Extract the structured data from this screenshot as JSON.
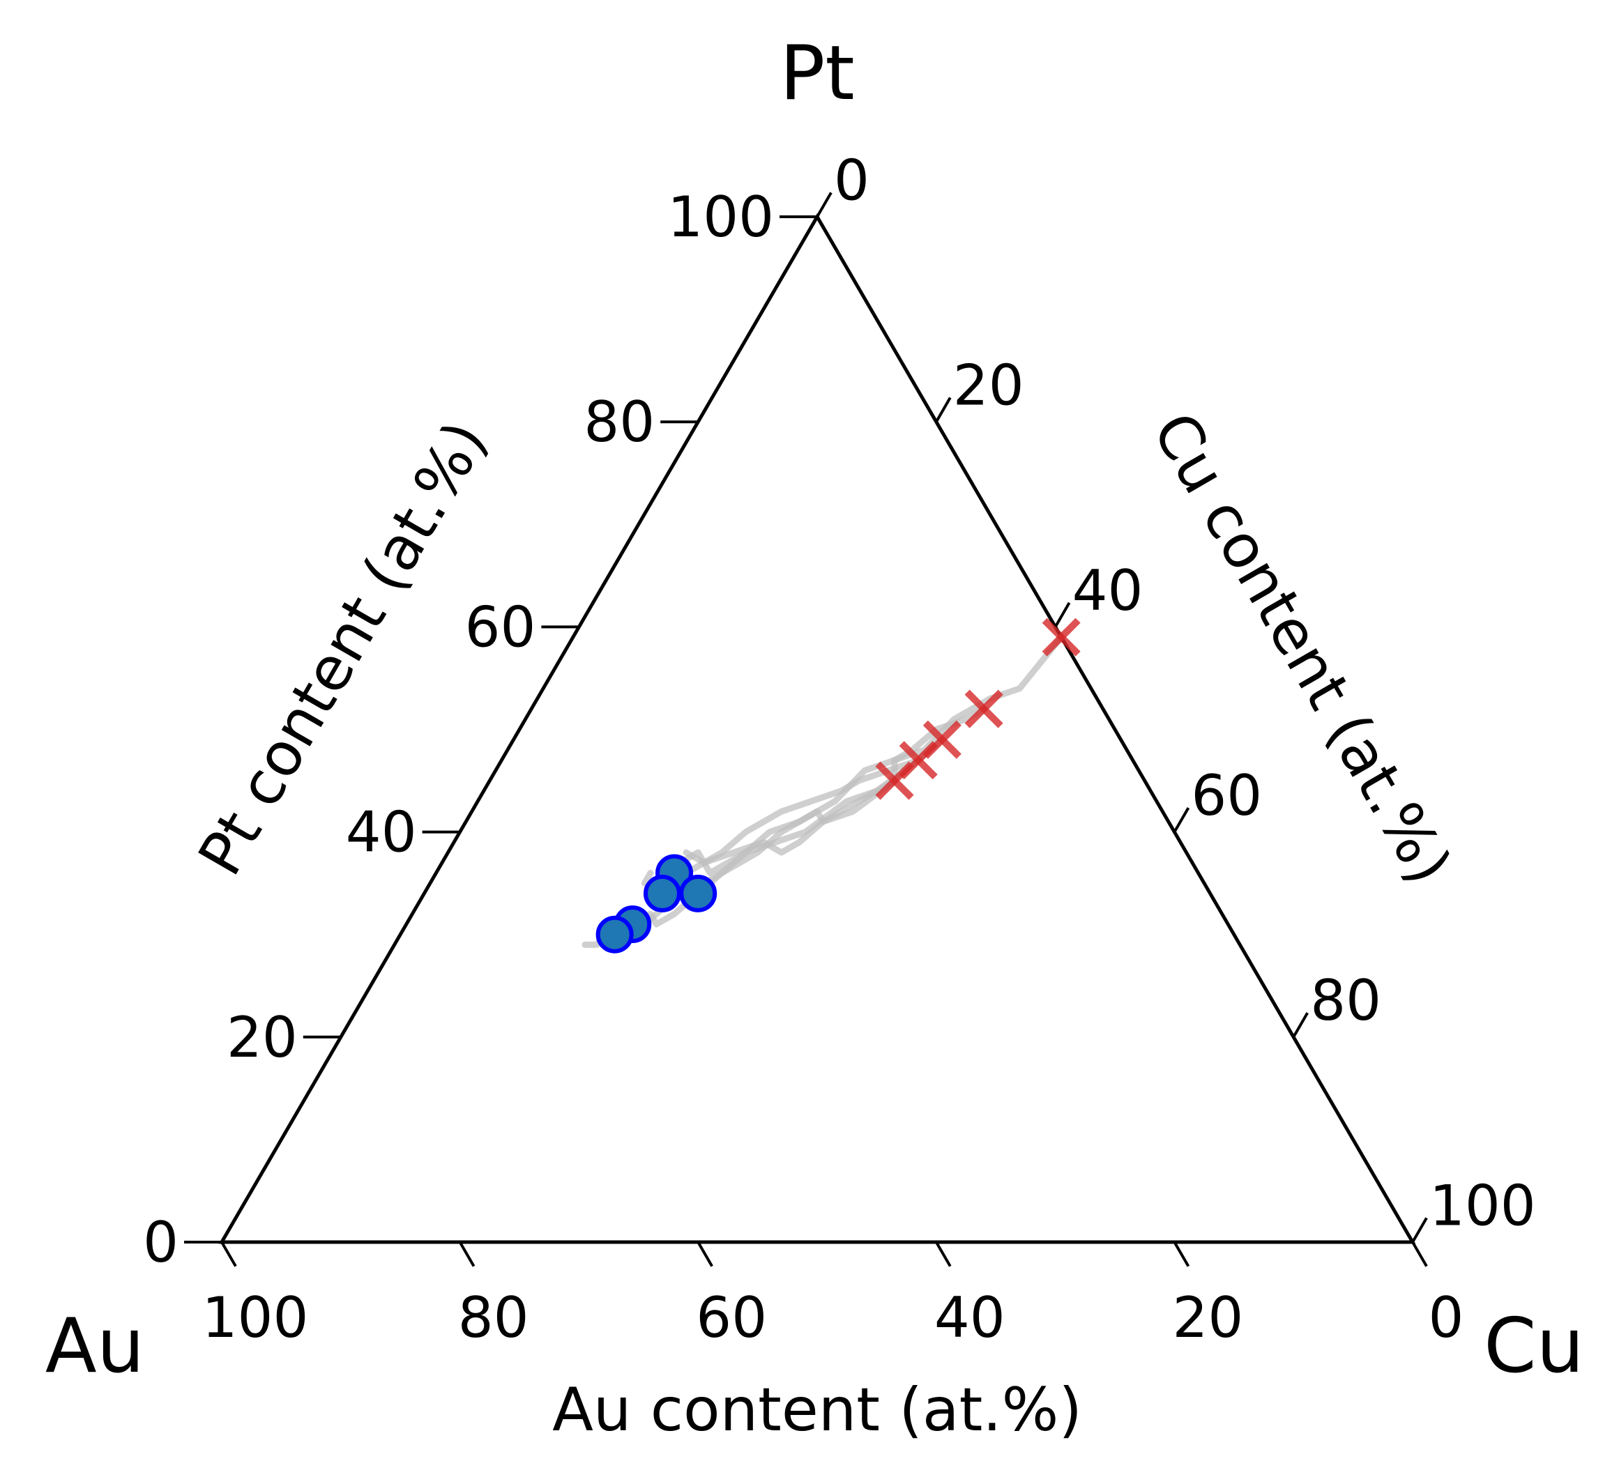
{
  "chart_data": {
    "type": "ternary",
    "corner_labels": {
      "top": "Pt",
      "left": "Au",
      "right": "Cu"
    },
    "axis_labels": {
      "left": "Pt content (at.%)",
      "right": "Cu content (at.%)",
      "bottom": "Au content (at.%)"
    },
    "ticks": {
      "pt": [
        "0",
        "20",
        "40",
        "60",
        "80",
        "100"
      ],
      "cu": [
        "0",
        "20",
        "40",
        "60",
        "80",
        "100"
      ],
      "au": [
        "100",
        "80",
        "60",
        "40",
        "20",
        "0"
      ]
    },
    "tick_values": [
      0,
      20,
      40,
      60,
      80,
      100
    ],
    "colors": {
      "axes": "#000000",
      "paths": "#bfbfbf",
      "start_marker": "#d62728",
      "end_marker_fill": "#1f77b4",
      "end_marker_edge": "#0000ff"
    },
    "series": [
      {
        "kind": "paths",
        "points": [
          [
            [
              41,
              59
            ],
            [
              40,
              54
            ],
            [
              38,
              53
            ],
            [
              36,
              51
            ],
            [
              35,
              48
            ],
            [
              33,
              47
            ],
            [
              34,
              45
            ],
            [
              32,
              42
            ],
            [
              30,
              41
            ],
            [
              29,
              39
            ],
            [
              28,
              38
            ],
            [
              26,
              39
            ],
            [
              24,
              38
            ],
            [
              22,
              37
            ],
            [
              20,
              38
            ]
          ],
          [
            [
              38,
              52
            ],
            [
              37,
              51
            ],
            [
              35,
              50
            ],
            [
              34,
              48
            ],
            [
              33,
              47
            ],
            [
              31,
              46
            ],
            [
              30,
              43
            ],
            [
              28,
              41
            ],
            [
              26,
              40
            ],
            [
              25,
              38
            ],
            [
              23,
              36
            ],
            [
              22,
              37
            ],
            [
              21,
              38
            ],
            [
              20,
              37
            ],
            [
              19,
              36
            ]
          ],
          [
            [
              36,
              49
            ],
            [
              35,
              47
            ],
            [
              33,
              46
            ],
            [
              31,
              45
            ],
            [
              30,
              44
            ],
            [
              28,
              43
            ],
            [
              26,
              42
            ],
            [
              24,
              40
            ],
            [
              23,
              38
            ],
            [
              22,
              37
            ],
            [
              20,
              35
            ],
            [
              19,
              34
            ],
            [
              20,
              36
            ],
            [
              18,
              35
            ],
            [
              18,
              36
            ]
          ],
          [
            [
              35,
              47
            ],
            [
              33,
              44
            ],
            [
              32,
              43
            ],
            [
              30,
              41
            ],
            [
              29,
              42
            ],
            [
              27,
              40
            ],
            [
              26,
              38
            ],
            [
              25,
              37
            ],
            [
              24,
              36
            ],
            [
              23,
              34
            ],
            [
              22,
              32
            ],
            [
              21,
              31
            ],
            [
              20,
              32
            ],
            [
              19,
              31
            ],
            [
              19,
              30
            ]
          ],
          [
            [
              34,
              45
            ],
            [
              33,
              44
            ],
            [
              31,
              43
            ],
            [
              29,
              40
            ],
            [
              27,
              39
            ],
            [
              25,
              38
            ],
            [
              24,
              36
            ],
            [
              23,
              35
            ],
            [
              21,
              33
            ],
            [
              20,
              31
            ],
            [
              19,
              30
            ],
            [
              18,
              31
            ],
            [
              17,
              30
            ],
            [
              17,
              29
            ],
            [
              16,
              29
            ]
          ]
        ]
      },
      {
        "kind": "start",
        "marker": "x",
        "points": [
          [
            41,
            59
          ],
          [
            38,
            52
          ],
          [
            36,
            49
          ],
          [
            35,
            47
          ],
          [
            34,
            45
          ]
        ]
      },
      {
        "kind": "end",
        "marker": "circle",
        "points": [
          [
            20,
            36
          ],
          [
            23,
            34
          ],
          [
            20,
            34
          ],
          [
            19,
            31
          ],
          [
            18,
            30
          ]
        ]
      }
    ]
  }
}
